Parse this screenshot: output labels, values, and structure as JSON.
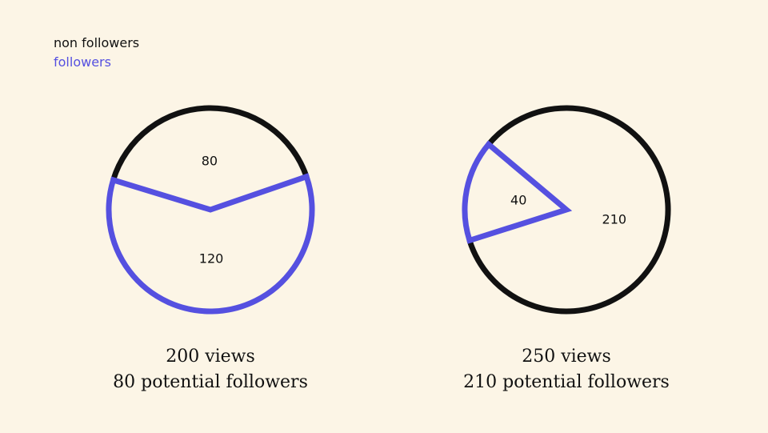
{
  "legend": {
    "items": [
      {
        "label": "non followers",
        "color": "#111111"
      },
      {
        "label": "followers",
        "color": "#5550e0"
      }
    ]
  },
  "colors": {
    "followers": "#5550e0",
    "non_followers": "#111111",
    "background": "#fcf5e6"
  },
  "chart_data": [
    {
      "type": "pie",
      "slices": [
        {
          "series": "followers",
          "value": 120,
          "label": "120"
        },
        {
          "series": "non followers",
          "value": 80,
          "label": "80"
        }
      ],
      "caption_lines": [
        "200 views",
        "80 potential followers"
      ]
    },
    {
      "type": "pie",
      "slices": [
        {
          "series": "followers",
          "value": 40,
          "label": "40"
        },
        {
          "series": "non followers",
          "value": 210,
          "label": "210"
        }
      ],
      "caption_lines": [
        "250 views",
        "210 potential followers"
      ]
    }
  ]
}
